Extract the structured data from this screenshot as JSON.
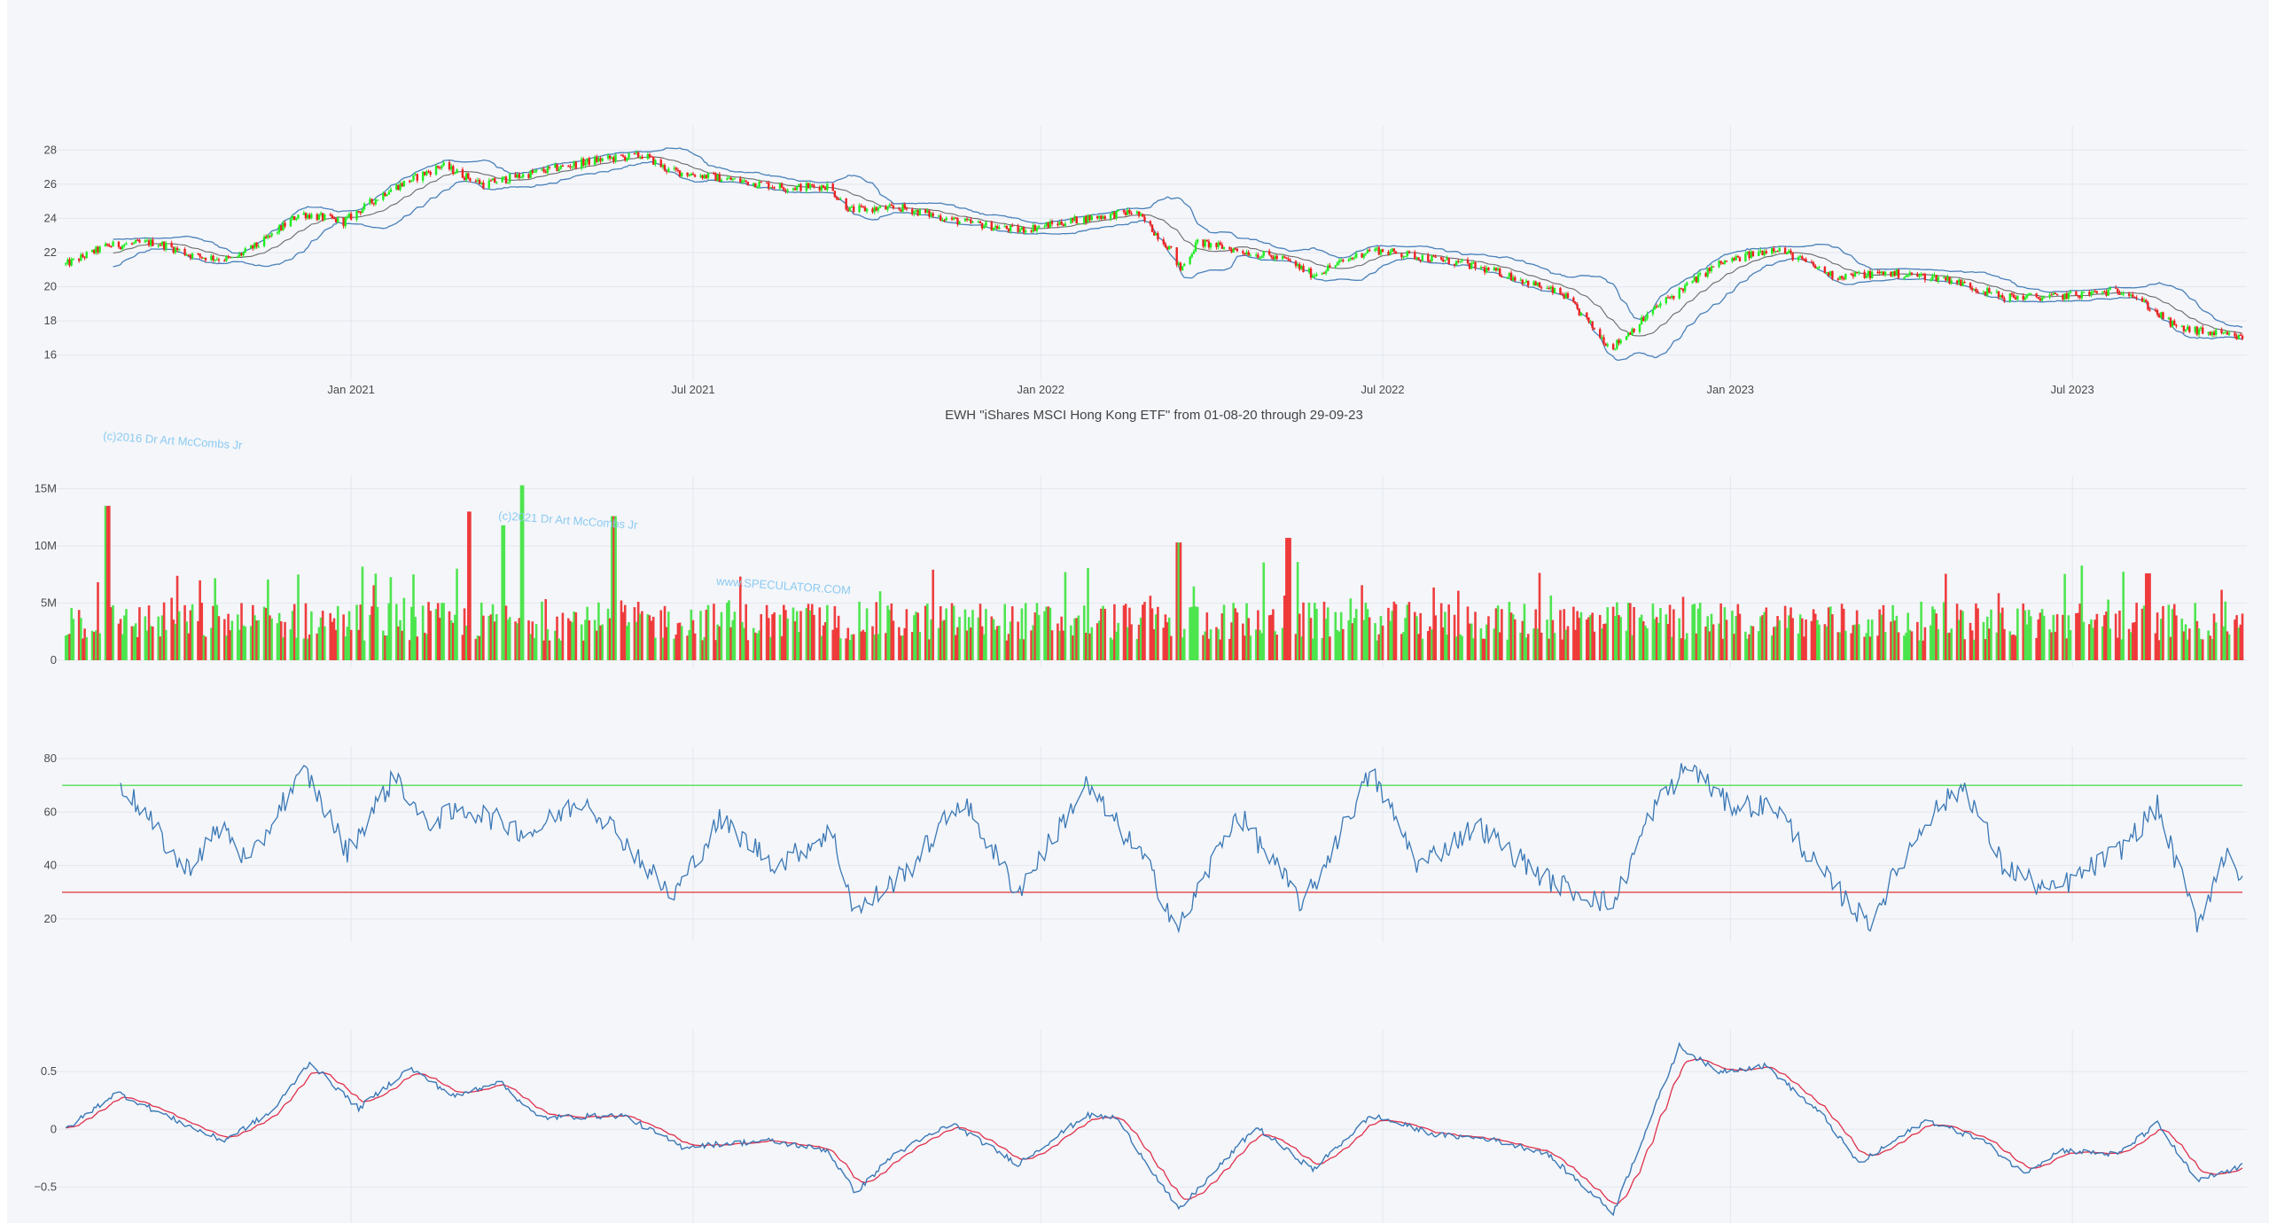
{
  "chart_data": [
    {
      "type": "candlestick",
      "panel": "price",
      "title": "EWH \"iShares MSCI Hong Kong ETF\" from 01-08-20 through 29-09-23",
      "x_range": [
        "2020-08-01",
        "2023-09-29"
      ],
      "x_ticks": [
        "Jan 2021",
        "Jul 2021",
        "Jan 2022",
        "Jul 2022",
        "Jan 2023",
        "Jul 2023"
      ],
      "y_ticks": [
        16,
        18,
        20,
        22,
        24,
        26,
        28
      ],
      "ylim": [
        15,
        29
      ],
      "colors": {
        "up": "#22ee22",
        "down": "#ee2222",
        "band": "#4a80b8",
        "mid": "#6a6a6a"
      },
      "price_anchors": [
        [
          "2020-08-03",
          21.3
        ],
        [
          "2020-08-25",
          22.4
        ],
        [
          "2020-09-20",
          22.6
        ],
        [
          "2020-10-10",
          21.8
        ],
        [
          "2020-10-30",
          21.6
        ],
        [
          "2020-11-15",
          22.6
        ],
        [
          "2020-12-05",
          24.3
        ],
        [
          "2020-12-28",
          23.8
        ],
        [
          "2021-01-20",
          25.6
        ],
        [
          "2021-02-18",
          27.1
        ],
        [
          "2021-03-12",
          26.0
        ],
        [
          "2021-04-05",
          26.6
        ],
        [
          "2021-05-10",
          27.4
        ],
        [
          "2021-06-05",
          27.7
        ],
        [
          "2021-06-18",
          26.8
        ],
        [
          "2021-07-25",
          26.2
        ],
        [
          "2021-08-20",
          25.8
        ],
        [
          "2021-09-10",
          25.9
        ],
        [
          "2021-09-22",
          24.5
        ],
        [
          "2021-10-20",
          24.6
        ],
        [
          "2021-11-20",
          23.8
        ],
        [
          "2021-12-20",
          23.3
        ],
        [
          "2022-01-25",
          24.0
        ],
        [
          "2022-02-20",
          24.4
        ],
        [
          "2022-03-10",
          22.3
        ],
        [
          "2022-03-16",
          21.0
        ],
        [
          "2022-03-25",
          22.6
        ],
        [
          "2022-05-10",
          21.6
        ],
        [
          "2022-05-25",
          20.7
        ],
        [
          "2022-06-25",
          22.2
        ],
        [
          "2022-08-10",
          21.4
        ],
        [
          "2022-09-05",
          20.7
        ],
        [
          "2022-10-05",
          19.5
        ],
        [
          "2022-10-30",
          16.4
        ],
        [
          "2022-11-25",
          19.0
        ],
        [
          "2022-12-25",
          21.3
        ],
        [
          "2023-01-25",
          22.3
        ],
        [
          "2023-02-25",
          20.6
        ],
        [
          "2023-03-25",
          20.8
        ],
        [
          "2023-04-25",
          20.5
        ],
        [
          "2023-05-25",
          19.4
        ],
        [
          "2023-06-20",
          19.4
        ],
        [
          "2023-07-30",
          19.8
        ],
        [
          "2023-08-25",
          17.6
        ],
        [
          "2023-09-29",
          17.0
        ]
      ]
    },
    {
      "type": "bar",
      "panel": "volume",
      "y_ticks": [
        0,
        5000000,
        10000000,
        15000000
      ],
      "y_tick_labels": [
        "0",
        "5M",
        "10M",
        "15M"
      ],
      "ylim": [
        0,
        15500000
      ],
      "baseline_volume": 3800000,
      "spikes": [
        [
          "2020-08-25",
          13500000
        ],
        [
          "2021-03-05",
          13000000
        ],
        [
          "2021-03-22",
          11800000
        ],
        [
          "2021-04-02",
          15300000
        ],
        [
          "2021-05-20",
          12600000
        ],
        [
          "2022-03-15",
          10300000
        ],
        [
          "2022-05-12",
          10700000
        ],
        [
          "2023-08-10",
          7600000
        ]
      ]
    },
    {
      "type": "line",
      "panel": "rsi",
      "y_ticks": [
        20,
        40,
        60,
        80
      ],
      "ylim": [
        14,
        82
      ],
      "levels": [
        {
          "value": 70,
          "color": "#55dd55"
        },
        {
          "value": 30,
          "color": "#e04444"
        }
      ],
      "anchors": [
        [
          "2020-09-01",
          71
        ],
        [
          "2020-09-15",
          58
        ],
        [
          "2020-10-05",
          38
        ],
        [
          "2020-10-25",
          55
        ],
        [
          "2020-11-08",
          40
        ],
        [
          "2020-11-25",
          63
        ],
        [
          "2020-12-08",
          75
        ],
        [
          "2020-12-30",
          45
        ],
        [
          "2021-01-10",
          58
        ],
        [
          "2021-01-25",
          74
        ],
        [
          "2021-02-08",
          56
        ],
        [
          "2021-03-05",
          61
        ],
        [
          "2021-04-05",
          52
        ],
        [
          "2021-05-05",
          65
        ],
        [
          "2021-05-25",
          50
        ],
        [
          "2021-06-20",
          28
        ],
        [
          "2021-07-15",
          57
        ],
        [
          "2021-08-15",
          40
        ],
        [
          "2021-09-12",
          53
        ],
        [
          "2021-09-25",
          22
        ],
        [
          "2021-10-25",
          40
        ],
        [
          "2021-11-20",
          65
        ],
        [
          "2021-12-20",
          30
        ],
        [
          "2022-01-25",
          70
        ],
        [
          "2022-02-25",
          42
        ],
        [
          "2022-03-15",
          16
        ],
        [
          "2022-04-15",
          60
        ],
        [
          "2022-05-20",
          25
        ],
        [
          "2022-06-25",
          75
        ],
        [
          "2022-07-20",
          40
        ],
        [
          "2022-08-20",
          55
        ],
        [
          "2022-09-25",
          35
        ],
        [
          "2022-10-31",
          25
        ],
        [
          "2022-11-20",
          60
        ],
        [
          "2022-12-10",
          78
        ],
        [
          "2022-12-30",
          63
        ],
        [
          "2023-01-25",
          62
        ],
        [
          "2023-02-15",
          40
        ],
        [
          "2023-03-15",
          18
        ],
        [
          "2023-04-15",
          58
        ],
        [
          "2023-05-05",
          70
        ],
        [
          "2023-05-25",
          40
        ],
        [
          "2023-06-20",
          30
        ],
        [
          "2023-07-25",
          45
        ],
        [
          "2023-08-15",
          62
        ],
        [
          "2023-09-05",
          18
        ],
        [
          "2023-09-22",
          48
        ],
        [
          "2023-09-29",
          32
        ]
      ]
    },
    {
      "type": "line",
      "panel": "macd",
      "y_ticks": [
        -0.5,
        0,
        0.5
      ],
      "y_tick_labels": [
        "−0.5",
        "0",
        "0.5"
      ],
      "ylim": [
        -0.75,
        0.8
      ],
      "anchors": [
        [
          "2020-08-03",
          0.0
        ],
        [
          "2020-08-30",
          0.32
        ],
        [
          "2020-09-30",
          0.08
        ],
        [
          "2020-10-25",
          -0.1
        ],
        [
          "2020-11-20",
          0.15
        ],
        [
          "2020-12-10",
          0.58
        ],
        [
          "2021-01-05",
          0.18
        ],
        [
          "2021-02-01",
          0.53
        ],
        [
          "2021-02-25",
          0.28
        ],
        [
          "2021-03-20",
          0.42
        ],
        [
          "2021-04-10",
          0.1
        ],
        [
          "2021-05-25",
          0.12
        ],
        [
          "2021-06-25",
          -0.15
        ],
        [
          "2021-08-10",
          -0.1
        ],
        [
          "2021-09-10",
          -0.18
        ],
        [
          "2021-09-25",
          -0.55
        ],
        [
          "2021-10-15",
          -0.22
        ],
        [
          "2021-11-15",
          0.05
        ],
        [
          "2021-12-20",
          -0.3
        ],
        [
          "2022-01-25",
          0.12
        ],
        [
          "2022-02-10",
          0.1
        ],
        [
          "2022-03-15",
          -0.7
        ],
        [
          "2022-04-25",
          0.02
        ],
        [
          "2022-05-25",
          -0.35
        ],
        [
          "2022-06-25",
          0.12
        ],
        [
          "2022-07-30",
          -0.05
        ],
        [
          "2022-08-25",
          -0.08
        ],
        [
          "2022-09-25",
          -0.2
        ],
        [
          "2022-10-31",
          -0.72
        ],
        [
          "2022-12-05",
          0.72
        ],
        [
          "2022-12-25",
          0.5
        ],
        [
          "2023-01-20",
          0.55
        ],
        [
          "2023-02-20",
          0.1
        ],
        [
          "2023-03-10",
          -0.3
        ],
        [
          "2023-04-15",
          0.08
        ],
        [
          "2023-05-15",
          -0.1
        ],
        [
          "2023-06-05",
          -0.38
        ],
        [
          "2023-06-25",
          -0.18
        ],
        [
          "2023-07-25",
          -0.22
        ],
        [
          "2023-08-15",
          0.05
        ],
        [
          "2023-09-05",
          -0.45
        ],
        [
          "2023-09-29",
          -0.32
        ]
      ],
      "colors": {
        "line": "#3b78b5",
        "signal": "#e0314b"
      }
    }
  ],
  "watermarks": {
    "top": "(c)2016 Dr Art McCombs Jr",
    "middle": "(c)2021 Dr Art McCombs Jr",
    "site": "www.SPECULATOR.COM"
  }
}
